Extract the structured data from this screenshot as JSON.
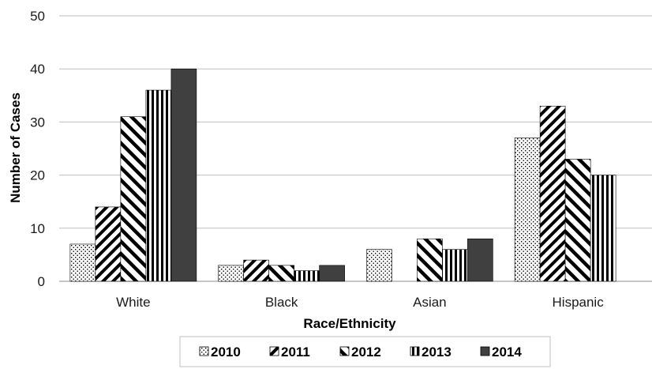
{
  "chart_data": {
    "type": "bar",
    "title": "",
    "xlabel": "Race/Ethnicity",
    "ylabel": "Number of Cases",
    "ylim": [
      0,
      50
    ],
    "yticks": [
      0,
      10,
      20,
      30,
      40,
      50
    ],
    "grid": true,
    "legend_position": "bottom",
    "categories": [
      "White",
      "Black",
      "Asian",
      "Hispanic"
    ],
    "series": [
      {
        "name": "2010",
        "values": [
          7,
          3,
          6,
          27
        ],
        "pattern": "dots",
        "color": "#000000"
      },
      {
        "name": "2011",
        "values": [
          14,
          4,
          0,
          33
        ],
        "pattern": "wide-diagonal-up",
        "color": "#000000"
      },
      {
        "name": "2012",
        "values": [
          31,
          3,
          8,
          23
        ],
        "pattern": "wide-diagonal-down",
        "color": "#000000"
      },
      {
        "name": "2013",
        "values": [
          36,
          2,
          6,
          20
        ],
        "pattern": "vertical-stripes",
        "color": "#000000"
      },
      {
        "name": "2014",
        "values": [
          40,
          3,
          8,
          0
        ],
        "pattern": "solid",
        "color": "#404040"
      }
    ]
  }
}
